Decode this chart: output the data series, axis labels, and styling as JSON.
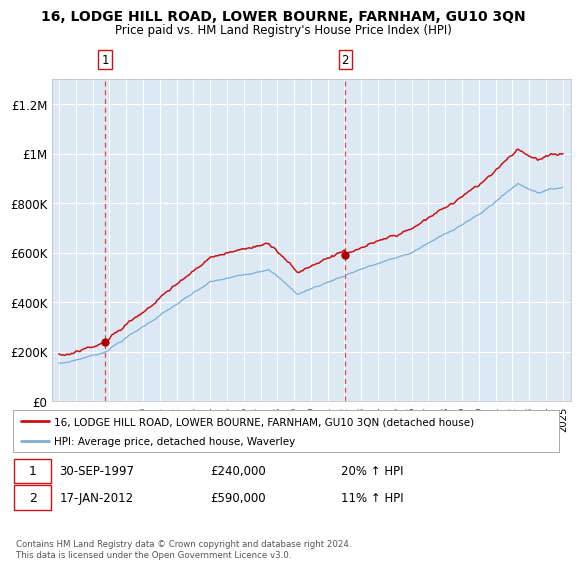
{
  "title": "16, LODGE HILL ROAD, LOWER BOURNE, FARNHAM, GU10 3QN",
  "subtitle": "Price paid vs. HM Land Registry's House Price Index (HPI)",
  "plot_bg_color": "#dce9f5",
  "ylim": [
    0,
    1300000
  ],
  "yticks": [
    0,
    200000,
    400000,
    600000,
    800000,
    1000000,
    1200000
  ],
  "ytick_labels": [
    "£0",
    "£200K",
    "£400K",
    "£600K",
    "£800K",
    "£1M",
    "£1.2M"
  ],
  "hpi_color": "#7bafd4",
  "price_color": "#cc1111",
  "marker_color": "#aa0000",
  "sale1_year": 1997.75,
  "sale1_price": 240000,
  "sale2_year": 2012.05,
  "sale2_price": 590000,
  "legend_label1": "16, LODGE HILL ROAD, LOWER BOURNE, FARNHAM, GU10 3QN (detached house)",
  "legend_label2": "HPI: Average price, detached house, Waverley",
  "note1_date": "30-SEP-1997",
  "note1_price": "£240,000",
  "note1_hpi": "20% ↑ HPI",
  "note2_date": "17-JAN-2012",
  "note2_price": "£590,000",
  "note2_hpi": "11% ↑ HPI",
  "footer": "Contains HM Land Registry data © Crown copyright and database right 2024.\nThis data is licensed under the Open Government Licence v3.0."
}
